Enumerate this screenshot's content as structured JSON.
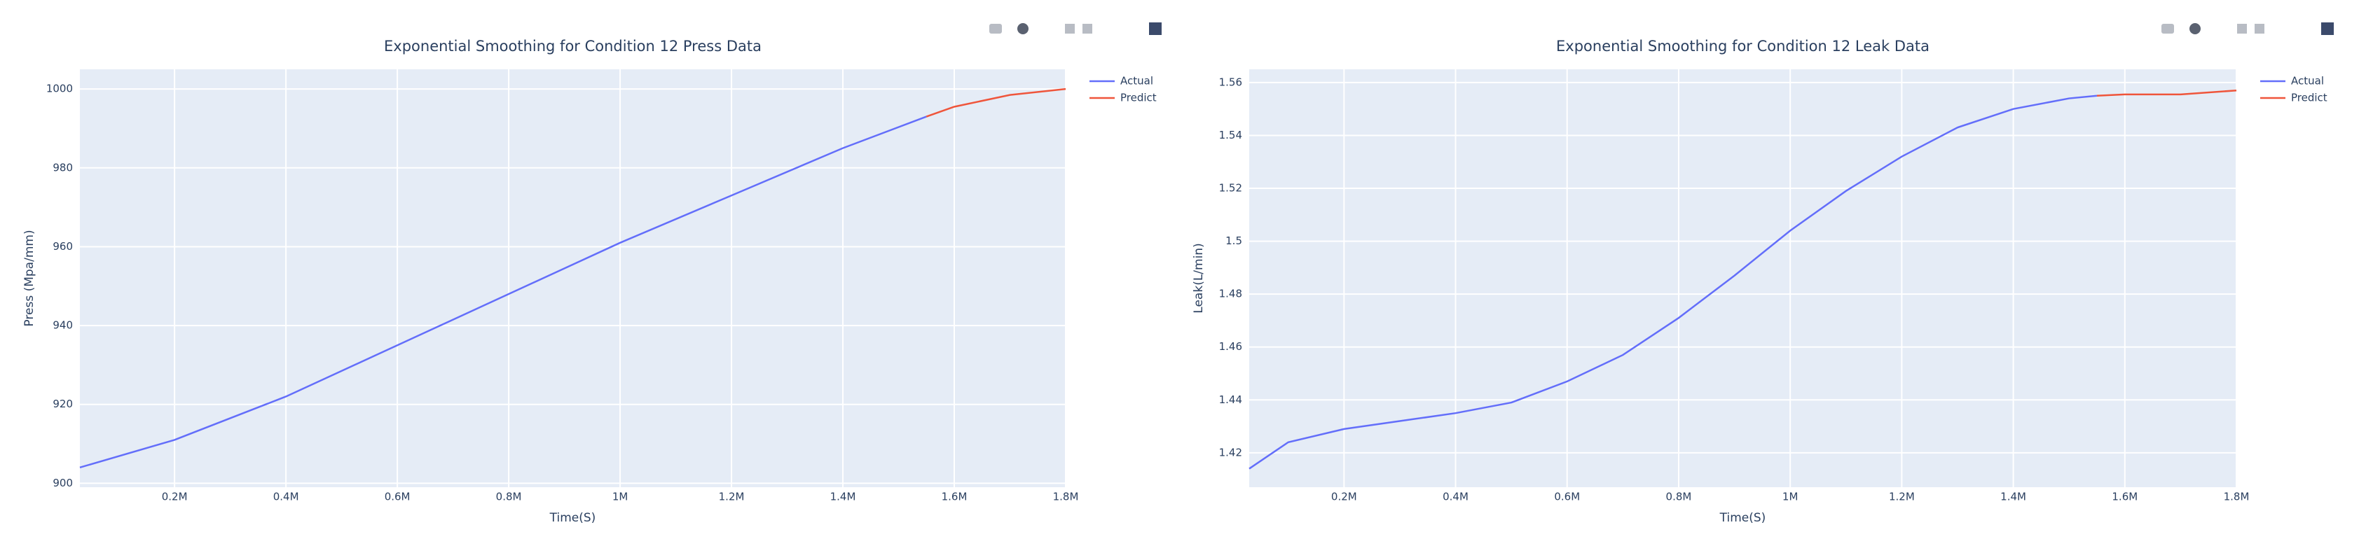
{
  "chart_data": [
    {
      "type": "line",
      "title": "Exponential Smoothing for Condition 12 Press Data",
      "x_label": "Time(S)",
      "y_label": "Press (Mpa/mm)",
      "xlim": [
        30000,
        1800000
      ],
      "xticks": [
        {
          "value": 200000,
          "label": "0.2M"
        },
        {
          "value": 400000,
          "label": "0.4M"
        },
        {
          "value": 600000,
          "label": "0.6M"
        },
        {
          "value": 800000,
          "label": "0.8M"
        },
        {
          "value": 1000000,
          "label": "1M"
        },
        {
          "value": 1200000,
          "label": "1.2M"
        },
        {
          "value": 1400000,
          "label": "1.4M"
        },
        {
          "value": 1600000,
          "label": "1.6M"
        },
        {
          "value": 1800000,
          "label": "1.8M"
        }
      ],
      "ylim": [
        899,
        1005
      ],
      "yticks": [
        900,
        920,
        940,
        960,
        980,
        1000
      ],
      "grid": true,
      "series": [
        {
          "name": "Actual",
          "color": "#636efa",
          "x": [
            30000,
            200000,
            400000,
            600000,
            800000,
            1000000,
            1200000,
            1400000,
            1550000
          ],
          "values": [
            904,
            911,
            922,
            935,
            948,
            961,
            973,
            985,
            993
          ]
        },
        {
          "name": "Predict",
          "color": "#ef553b",
          "x": [
            1550000,
            1600000,
            1700000,
            1800000
          ],
          "values": [
            993,
            995.5,
            998.5,
            1000
          ]
        }
      ]
    },
    {
      "type": "line",
      "title": "Exponential Smoothing for Condition 12 Leak Data",
      "x_label": "Time(S)",
      "y_label": "Leak(L/min)",
      "xlim": [
        30000,
        1800000
      ],
      "xticks": [
        {
          "value": 200000,
          "label": "0.2M"
        },
        {
          "value": 400000,
          "label": "0.4M"
        },
        {
          "value": 600000,
          "label": "0.6M"
        },
        {
          "value": 800000,
          "label": "0.8M"
        },
        {
          "value": 1000000,
          "label": "1M"
        },
        {
          "value": 1200000,
          "label": "1.2M"
        },
        {
          "value": 1400000,
          "label": "1.4M"
        },
        {
          "value": 1600000,
          "label": "1.6M"
        },
        {
          "value": 1800000,
          "label": "1.8M"
        }
      ],
      "ylim": [
        1.407,
        1.565
      ],
      "yticks": [
        1.42,
        1.44,
        1.46,
        1.48,
        1.5,
        1.52,
        1.54,
        1.56
      ],
      "grid": true,
      "series": [
        {
          "name": "Actual",
          "color": "#636efa",
          "x": [
            30000,
            100000,
            200000,
            300000,
            400000,
            500000,
            600000,
            700000,
            800000,
            900000,
            1000000,
            1100000,
            1200000,
            1300000,
            1400000,
            1500000,
            1550000
          ],
          "values": [
            1.414,
            1.424,
            1.429,
            1.432,
            1.435,
            1.439,
            1.447,
            1.457,
            1.471,
            1.487,
            1.504,
            1.519,
            1.532,
            1.543,
            1.55,
            1.554,
            1.555
          ]
        },
        {
          "name": "Predict",
          "color": "#ef553b",
          "x": [
            1550000,
            1600000,
            1700000,
            1800000
          ],
          "values": [
            1.555,
            1.5555,
            1.5555,
            1.557
          ]
        }
      ]
    }
  ]
}
